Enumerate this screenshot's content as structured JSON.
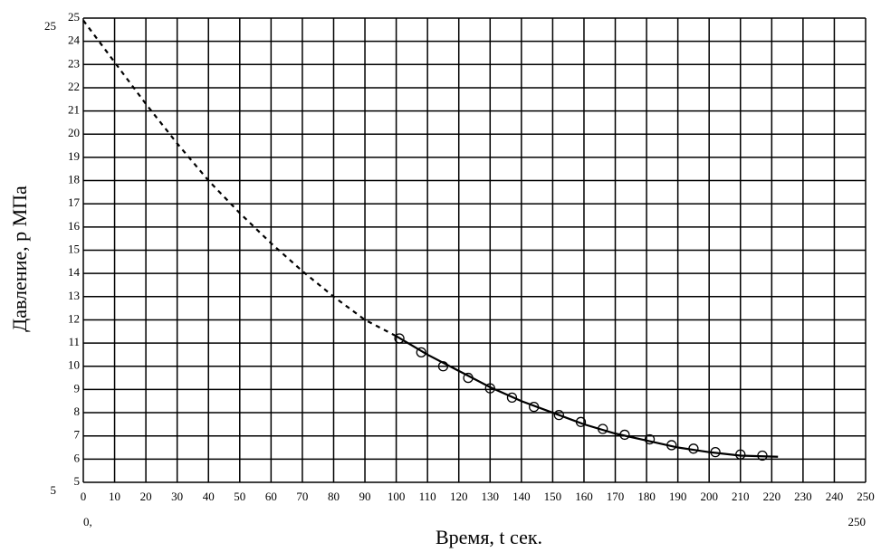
{
  "chart_data": {
    "type": "line",
    "xlabel": "Время, t сек.",
    "ylabel": "Давление, р МПа",
    "xlim": [
      0,
      250
    ],
    "xticks": [
      0,
      10,
      20,
      30,
      40,
      50,
      60,
      70,
      80,
      90,
      100,
      110,
      120,
      130,
      140,
      150,
      160,
      170,
      180,
      190,
      200,
      210,
      220,
      230,
      240,
      250
    ],
    "ylim": [
      5,
      25
    ],
    "yticks": [
      5,
      6,
      7,
      8,
      9,
      10,
      11,
      12,
      13,
      14,
      15,
      16,
      17,
      18,
      19,
      20,
      21,
      22,
      23,
      24,
      25
    ],
    "x2lim": [
      0,
      250
    ],
    "x2ticks": [
      {
        "value": 0,
        "label": "0,"
      },
      250
    ],
    "y2lim": [
      5,
      25
    ],
    "y2ticks": [
      5,
      25
    ],
    "grid": true,
    "series": [
      {
        "color": "#000000",
        "style": "dashed",
        "x": [
          0,
          10,
          20,
          30,
          40,
          50,
          60,
          70,
          80,
          90,
          100
        ],
        "values": [
          24.9,
          23.1,
          21.3,
          19.6,
          18.0,
          16.6,
          15.3,
          14.1,
          13.0,
          12.0,
          11.3
        ]
      },
      {
        "color": "#000000",
        "style": "solid",
        "x": [
          100,
          110,
          120,
          130,
          140,
          150,
          160,
          170,
          180,
          190,
          200,
          210,
          222
        ],
        "values": [
          11.3,
          10.5,
          9.8,
          9.1,
          8.5,
          8.0,
          7.5,
          7.1,
          6.8,
          6.5,
          6.3,
          6.15,
          6.1
        ]
      },
      {
        "color": "#000000",
        "style": "markers",
        "x": [
          101,
          108,
          115,
          123,
          130,
          137,
          144,
          152,
          159,
          166,
          173,
          181,
          188,
          195,
          202,
          210,
          217
        ],
        "values": [
          11.2,
          10.6,
          10.0,
          9.5,
          9.05,
          8.65,
          8.25,
          7.9,
          7.6,
          7.3,
          7.05,
          6.85,
          6.6,
          6.45,
          6.3,
          6.2,
          6.15
        ]
      }
    ]
  }
}
